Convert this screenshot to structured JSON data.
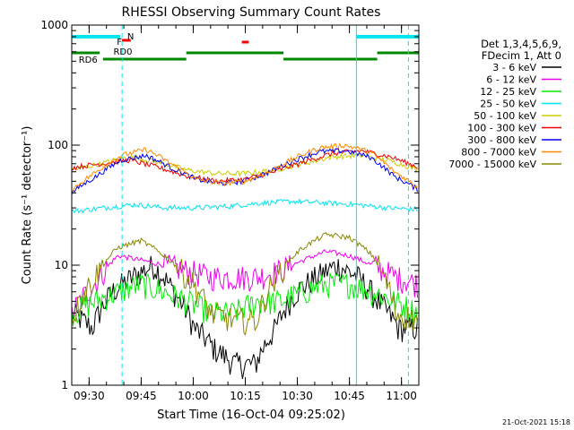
{
  "chart_data": {
    "type": "line",
    "title": "RHESSI Observing Summary Count Rates",
    "xlabel": "Start Time (16-Oct-04 09:25:02)",
    "ylabel": "Count Rate (s⁻¹ detector⁻¹)",
    "yscale": "log",
    "ylim": [
      1,
      1000
    ],
    "xlim_minutes": [
      0,
      100
    ],
    "x_ticks": [
      "09:30",
      "09:45",
      "10:00",
      "10:15",
      "10:30",
      "10:45",
      "11:00"
    ],
    "x_tick_minutes": [
      5,
      20,
      35,
      50,
      65,
      80,
      95
    ],
    "y_ticks": [
      "1",
      "10",
      "100",
      "1000"
    ],
    "y_tick_values": [
      1,
      10,
      100,
      1000
    ],
    "legend_header": [
      "Det 1,3,4,5,6,9,",
      "FDecim 1, Att 0"
    ],
    "legend_position": "right",
    "timestamp": "21-Oct-2021 15:18",
    "flags": {
      "N": {
        "label": "N",
        "color": "#00e5ee"
      },
      "F": {
        "label": "F",
        "color": "#ee0000"
      },
      "RD0": {
        "label": "RD0",
        "color": "#008800"
      },
      "RD6": {
        "label": "RD6",
        "color": "#008800"
      }
    },
    "series": [
      {
        "name": "3 - 6 keV",
        "color": "#000000",
        "approx_values": [
          4,
          3,
          6,
          8,
          10,
          6,
          3,
          2,
          1.5,
          1.5,
          3,
          6,
          8,
          10,
          8,
          5,
          3,
          3
        ]
      },
      {
        "name": "6 - 12 keV",
        "color": "#ee00ee",
        "approx_values": [
          4,
          7,
          12,
          11,
          10,
          9,
          8,
          8,
          8,
          9,
          11,
          13,
          12,
          10,
          8,
          7
        ]
      },
      {
        "name": "12 - 25 keV",
        "color": "#00ee00",
        "approx_values": [
          4,
          5,
          6,
          7,
          6,
          5,
          4,
          4,
          5,
          5,
          6,
          7,
          7,
          6,
          5,
          4
        ]
      },
      {
        "name": "25 - 50 keV",
        "color": "#00e5ee",
        "approx_values": [
          28,
          30,
          32,
          30,
          30,
          31,
          33,
          34,
          33,
          32,
          30,
          29
        ]
      },
      {
        "name": "50 - 100 keV",
        "color": "#cccc00",
        "approx_values": [
          62,
          70,
          80,
          72,
          62,
          58,
          58,
          62,
          70,
          80,
          82,
          74,
          62
        ]
      },
      {
        "name": "100 - 300 keV",
        "color": "#ee0000",
        "approx_values": [
          65,
          70,
          75,
          65,
          55,
          50,
          52,
          60,
          72,
          85,
          90,
          80,
          65
        ]
      },
      {
        "name": "300 - 800 keV",
        "color": "#0000ee",
        "approx_values": [
          40,
          55,
          75,
          82,
          65,
          52,
          48,
          50,
          60,
          75,
          88,
          90,
          80,
          55,
          42
        ]
      },
      {
        "name": "800 - 7000 keV",
        "color": "#ff8800",
        "approx_values": [
          42,
          60,
          82,
          92,
          70,
          52,
          48,
          50,
          60,
          78,
          95,
          100,
          88,
          60,
          44
        ]
      },
      {
        "name": "7000 - 15000 keV",
        "color": "#888800",
        "approx_values": [
          3.5,
          8,
          14,
          16,
          12,
          8,
          4,
          3.5,
          3.5,
          9,
          14,
          18,
          17,
          12,
          4,
          3.5
        ]
      }
    ]
  }
}
